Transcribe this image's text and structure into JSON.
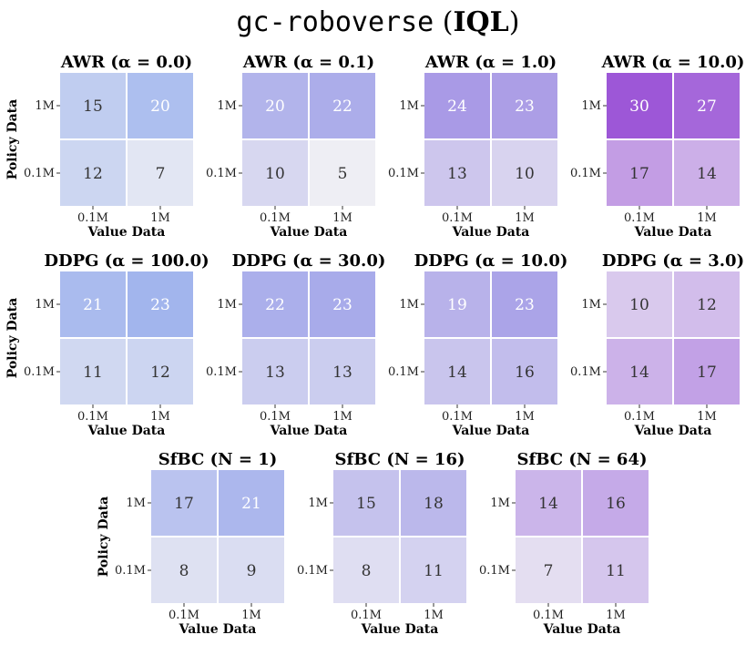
{
  "figure": {
    "title_mono": "gc-roboverse",
    "title_open": " (",
    "title_bold": "IQL",
    "title_close": ")"
  },
  "chart_data": [
    {
      "type": "heatmap",
      "title": "AWR (α = 0.0)",
      "row_labels": [
        "1M",
        "0.1M"
      ],
      "col_labels": [
        "0.1M",
        "1M"
      ],
      "xlabel": "Value Data",
      "ylabel": "Policy Data",
      "values": [
        [
          15,
          20
        ],
        [
          12,
          7
        ]
      ]
    },
    {
      "type": "heatmap",
      "title": "AWR (α = 0.1)",
      "row_labels": [
        "1M",
        "0.1M"
      ],
      "col_labels": [
        "0.1M",
        "1M"
      ],
      "xlabel": "Value Data",
      "ylabel": "",
      "values": [
        [
          20,
          22
        ],
        [
          10,
          5
        ]
      ]
    },
    {
      "type": "heatmap",
      "title": "AWR (α = 1.0)",
      "row_labels": [
        "1M",
        "0.1M"
      ],
      "col_labels": [
        "0.1M",
        "1M"
      ],
      "xlabel": "Value Data",
      "ylabel": "",
      "values": [
        [
          24,
          23
        ],
        [
          13,
          10
        ]
      ]
    },
    {
      "type": "heatmap",
      "title": "AWR (α = 10.0)",
      "row_labels": [
        "1M",
        "0.1M"
      ],
      "col_labels": [
        "0.1M",
        "1M"
      ],
      "xlabel": "Value Data",
      "ylabel": "",
      "values": [
        [
          30,
          27
        ],
        [
          17,
          14
        ]
      ]
    },
    {
      "type": "heatmap",
      "title": "DDPG (α = 100.0)",
      "row_labels": [
        "1M",
        "0.1M"
      ],
      "col_labels": [
        "0.1M",
        "1M"
      ],
      "xlabel": "Value Data",
      "ylabel": "Policy Data",
      "values": [
        [
          21,
          23
        ],
        [
          11,
          12
        ]
      ]
    },
    {
      "type": "heatmap",
      "title": "DDPG (α = 30.0)",
      "row_labels": [
        "1M",
        "0.1M"
      ],
      "col_labels": [
        "0.1M",
        "1M"
      ],
      "xlabel": "Value Data",
      "ylabel": "",
      "values": [
        [
          22,
          23
        ],
        [
          13,
          13
        ]
      ]
    },
    {
      "type": "heatmap",
      "title": "DDPG (α = 10.0)",
      "row_labels": [
        "1M",
        "0.1M"
      ],
      "col_labels": [
        "0.1M",
        "1M"
      ],
      "xlabel": "Value Data",
      "ylabel": "",
      "values": [
        [
          19,
          23
        ],
        [
          14,
          16
        ]
      ]
    },
    {
      "type": "heatmap",
      "title": "DDPG (α = 3.0)",
      "row_labels": [
        "1M",
        "0.1M"
      ],
      "col_labels": [
        "0.1M",
        "1M"
      ],
      "xlabel": "Value Data",
      "ylabel": "",
      "values": [
        [
          10,
          12
        ],
        [
          14,
          17
        ]
      ]
    },
    {
      "type": "heatmap",
      "title": "SfBC (N = 1)",
      "row_labels": [
        "1M",
        "0.1M"
      ],
      "col_labels": [
        "0.1M",
        "1M"
      ],
      "xlabel": "Value Data",
      "ylabel": "Policy Data",
      "values": [
        [
          17,
          21
        ],
        [
          8,
          9
        ]
      ]
    },
    {
      "type": "heatmap",
      "title": "SfBC (N = 16)",
      "row_labels": [
        "1M",
        "0.1M"
      ],
      "col_labels": [
        "0.1M",
        "1M"
      ],
      "xlabel": "Value Data",
      "ylabel": "",
      "values": [
        [
          15,
          18
        ],
        [
          8,
          11
        ]
      ]
    },
    {
      "type": "heatmap",
      "title": "SfBC (N = 64)",
      "row_labels": [
        "1M",
        "0.1M"
      ],
      "col_labels": [
        "0.1M",
        "1M"
      ],
      "xlabel": "Value Data",
      "ylabel": "",
      "values": [
        [
          14,
          16
        ],
        [
          7,
          11
        ]
      ]
    }
  ],
  "colors": {
    "awr_high": "#9b3fd4",
    "awr_low": "#eeeef4",
    "ddpg_high": "#8fa8ec",
    "ddpg_low": "#cfd9f3",
    "text_dark": "#333333",
    "text_light": "#ffffff"
  }
}
